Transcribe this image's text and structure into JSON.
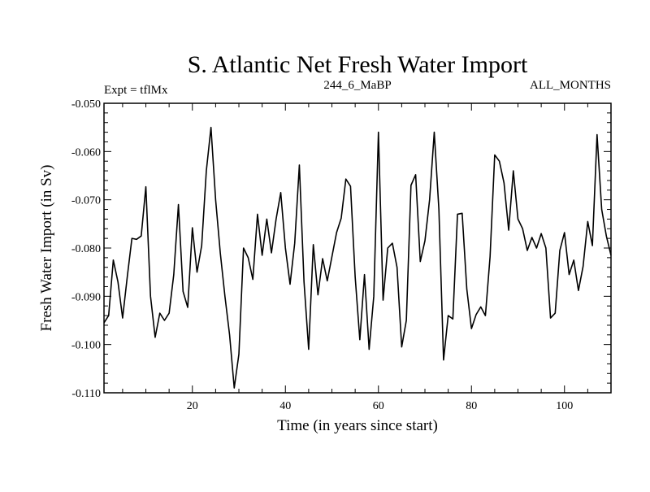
{
  "chart_data": {
    "type": "line",
    "title": "S. Atlantic Net Fresh Water Import",
    "subtitle_left": "Expt = tflMx",
    "subtitle_center": "244_6_MaBP",
    "subtitle_right": "ALL_MONTHS",
    "xlabel": "Time (in years since start)",
    "ylabel": "Fresh Water Import (in Sv)",
    "xlim": [
      1,
      110
    ],
    "ylim": [
      -0.11,
      -0.05
    ],
    "xticks": [
      20,
      40,
      60,
      80,
      100
    ],
    "xtick_labels": [
      "20",
      "40",
      "60",
      "80",
      "100"
    ],
    "yticks": [
      -0.11,
      -0.1,
      -0.09,
      -0.08,
      -0.07,
      -0.06,
      -0.05
    ],
    "ytick_labels": [
      "-0.110",
      "-0.100",
      "-0.090",
      "-0.080",
      "-0.070",
      "-0.060",
      "-0.050"
    ],
    "x_minor_step": 5,
    "y_minor_step": 0.002,
    "line_color": "#000000",
    "series": [
      {
        "name": "Net Fresh Water Import",
        "x": [
          1,
          2,
          3,
          4,
          5,
          6,
          7,
          8,
          9,
          10,
          11,
          12,
          13,
          14,
          15,
          16,
          17,
          18,
          19,
          20,
          21,
          22,
          23,
          24,
          25,
          26,
          27,
          28,
          29,
          30,
          31,
          32,
          33,
          34,
          35,
          36,
          37,
          38,
          39,
          40,
          41,
          42,
          43,
          44,
          45,
          46,
          47,
          48,
          49,
          50,
          51,
          52,
          53,
          54,
          55,
          56,
          57,
          58,
          59,
          60,
          61,
          62,
          63,
          64,
          65,
          66,
          67,
          68,
          69,
          70,
          71,
          72,
          73,
          74,
          75,
          76,
          77,
          78,
          79,
          80,
          81,
          82,
          83,
          84,
          85,
          86,
          87,
          88,
          89,
          90,
          91,
          92,
          93,
          94,
          95,
          96,
          97,
          98,
          99,
          100,
          101,
          102,
          103,
          104,
          105,
          106,
          107,
          108,
          109,
          110
        ],
        "values": [
          -0.0955,
          -0.094,
          -0.0825,
          -0.087,
          -0.0945,
          -0.086,
          -0.078,
          -0.0782,
          -0.0775,
          -0.0673,
          -0.09,
          -0.0985,
          -0.0935,
          -0.095,
          -0.0935,
          -0.0855,
          -0.071,
          -0.089,
          -0.0923,
          -0.0758,
          -0.085,
          -0.0795,
          -0.064,
          -0.055,
          -0.07,
          -0.081,
          -0.09,
          -0.098,
          -0.109,
          -0.102,
          -0.08,
          -0.082,
          -0.0865,
          -0.073,
          -0.0815,
          -0.074,
          -0.081,
          -0.074,
          -0.0685,
          -0.08,
          -0.0875,
          -0.079,
          -0.0628,
          -0.087,
          -0.101,
          -0.0793,
          -0.0897,
          -0.0822,
          -0.0868,
          -0.0818,
          -0.0768,
          -0.0738,
          -0.0657,
          -0.0672,
          -0.086,
          -0.099,
          -0.0855,
          -0.101,
          -0.09,
          -0.056,
          -0.0908,
          -0.08,
          -0.079,
          -0.084,
          -0.1005,
          -0.095,
          -0.067,
          -0.0648,
          -0.0828,
          -0.0785,
          -0.07,
          -0.056,
          -0.072,
          -0.1032,
          -0.094,
          -0.0947,
          -0.073,
          -0.0728,
          -0.0885,
          -0.0967,
          -0.0938,
          -0.0922,
          -0.094,
          -0.0818,
          -0.0607,
          -0.062,
          -0.0665,
          -0.0763,
          -0.064,
          -0.074,
          -0.076,
          -0.0805,
          -0.0778,
          -0.08,
          -0.077,
          -0.08,
          -0.0945,
          -0.0935,
          -0.0805,
          -0.0768,
          -0.0855,
          -0.0825,
          -0.0888,
          -0.0838,
          -0.0745,
          -0.0795,
          -0.0565,
          -0.072,
          -0.0775,
          -0.0815
        ]
      }
    ]
  }
}
